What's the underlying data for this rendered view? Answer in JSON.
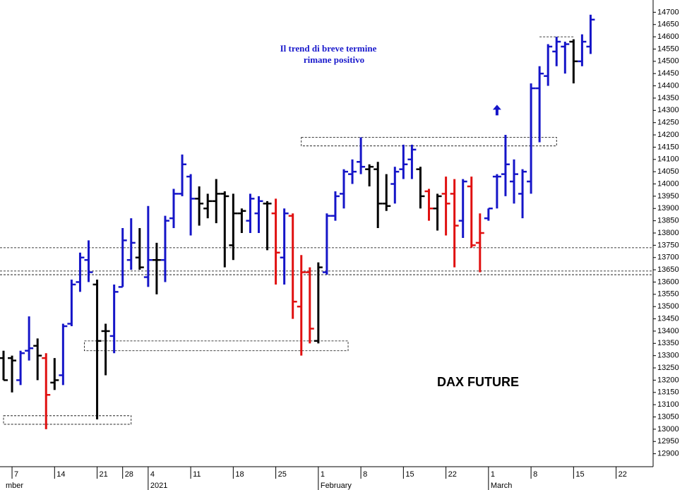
{
  "chart_data": {
    "type": "ohlc",
    "title": "DAX FUTURE",
    "annotations": [
      "Il trend di breve termine",
      "rimane positivo"
    ],
    "categories": [
      null,
      "7",
      null,
      null,
      null,
      null,
      "14",
      null,
      null,
      null,
      null,
      "21",
      null,
      null,
      "28",
      null,
      null,
      "4",
      null,
      null,
      null,
      null,
      "11",
      null,
      null,
      null,
      null,
      "18",
      null,
      null,
      null,
      null,
      "25",
      null,
      null,
      null,
      null,
      "1",
      null,
      null,
      null,
      null,
      "8",
      null,
      null,
      null,
      null,
      "15",
      null,
      null,
      null,
      null,
      "22",
      null,
      null,
      null,
      null,
      "1",
      null,
      null,
      null,
      null,
      "8",
      null,
      null,
      null,
      null,
      "15",
      null,
      null,
      null,
      null,
      "22",
      null,
      null,
      null,
      null
    ],
    "month_row": [
      "mber",
      null,
      null,
      null,
      null,
      null,
      null,
      null,
      null,
      null,
      null,
      null,
      null,
      null,
      null,
      null,
      null,
      "2021",
      null,
      null,
      null,
      null,
      null,
      null,
      null,
      null,
      null,
      null,
      null,
      null,
      null,
      null,
      null,
      null,
      null,
      null,
      null,
      "February",
      null,
      null,
      null,
      null,
      null,
      null,
      null,
      null,
      null,
      null,
      null,
      null,
      null,
      null,
      null,
      null,
      null,
      null,
      null,
      "March",
      null,
      null,
      null,
      null,
      null,
      null,
      null,
      null,
      null,
      null,
      null,
      null,
      null,
      null,
      null,
      null,
      null,
      null,
      null
    ],
    "open": [
      13290,
      13290,
      13200,
      13320,
      13340,
      13290,
      13190,
      13220,
      13430,
      13600,
      13690,
      13590,
      13400,
      13380,
      13580,
      13690,
      13700,
      13620,
      13690,
      13690,
      13860,
      13960,
      14030,
      13940,
      13900,
      13930,
      13960,
      13750,
      13880,
      13850,
      13880,
      13920,
      13880,
      13700,
      13870,
      13500,
      13640,
      13360,
      13640,
      13870,
      13960,
      14040,
      14090,
      14060,
      14060,
      13920,
      14000,
      14060,
      14100,
      14060,
      13970,
      13900,
      13960,
      13960,
      13850,
      13990,
      13760,
      13860,
      14030,
      14040,
      14010,
      13960,
      14010,
      14390,
      14440,
      14540,
      14560,
      14580,
      14500,
      14560,
      null,
      null,
      null,
      null,
      null,
      null,
      null
    ],
    "high": [
      13320,
      13300,
      13320,
      13460,
      13370,
      13310,
      13290,
      13430,
      13610,
      13720,
      13770,
      13610,
      13430,
      13590,
      13820,
      13860,
      13820,
      13910,
      13760,
      13870,
      13980,
      14120,
      14040,
      13990,
      13960,
      14020,
      13970,
      13960,
      13900,
      13960,
      13950,
      13930,
      13940,
      13900,
      13880,
      13710,
      13660,
      13680,
      13880,
      13970,
      14060,
      14100,
      14190,
      14080,
      14090,
      14040,
      14070,
      14160,
      14160,
      14070,
      13980,
      13960,
      14030,
      14020,
      14020,
      14030,
      13880,
      13900,
      14040,
      14200,
      14100,
      14060,
      14410,
      14480,
      14570,
      14600,
      14580,
      14590,
      14610,
      14690,
      null,
      null,
      null,
      null,
      null,
      null,
      null
    ],
    "low": [
      13200,
      13150,
      13180,
      13280,
      13200,
      13000,
      13160,
      13180,
      13420,
      13560,
      13600,
      13040,
      13220,
      13310,
      13580,
      13650,
      13650,
      13580,
      13550,
      13600,
      13820,
      13950,
      13790,
      13830,
      13860,
      13840,
      13660,
      13690,
      13800,
      13800,
      13800,
      13730,
      13590,
      13590,
      13450,
      13300,
      13350,
      13350,
      13630,
      13850,
      13900,
      14000,
      14040,
      13990,
      13820,
      13890,
      13920,
      14020,
      14020,
      13900,
      13850,
      13810,
      13790,
      13660,
      13780,
      13740,
      13640,
      13850,
      13900,
      13950,
      13920,
      13860,
      13960,
      14170,
      14400,
      14480,
      14450,
      14410,
      14480,
      14530,
      null,
      null,
      null,
      null,
      null,
      null,
      null
    ],
    "close": [
      13200,
      13280,
      13310,
      13330,
      13300,
      13140,
      13200,
      13420,
      13590,
      13700,
      13640,
      13360,
      13400,
      13560,
      13770,
      13760,
      13660,
      13690,
      13690,
      13850,
      13960,
      14080,
      13940,
      13920,
      13930,
      13960,
      13950,
      13880,
      13890,
      13940,
      13930,
      13920,
      13720,
      13880,
      13520,
      13640,
      13410,
      13660,
      13870,
      13950,
      14050,
      14050,
      14070,
      14070,
      13920,
      13910,
      14050,
      14080,
      14140,
      13950,
      13900,
      13950,
      13920,
      13830,
      14010,
      13750,
      13800,
      13900,
      14030,
      14080,
      14040,
      14050,
      14390,
      14450,
      14560,
      14580,
      14570,
      14500,
      14580,
      14670,
      null,
      null,
      null,
      null,
      null,
      null,
      null
    ],
    "colors": [
      "#000000",
      "#000000",
      "#1515c8",
      "#1515c8",
      "#000000",
      "#e01010",
      "#000000",
      "#1515c8",
      "#1515c8",
      "#1515c8",
      "#1515c8",
      "#000000",
      "#000000",
      "#1515c8",
      "#1515c8",
      "#1515c8",
      "#000000",
      "#1515c8",
      "#000000",
      "#1515c8",
      "#1515c8",
      "#1515c8",
      "#1515c8",
      "#000000",
      "#000000",
      "#000000",
      "#000000",
      "#000000",
      "#000000",
      "#1515c8",
      "#1515c8",
      "#000000",
      "#e01010",
      "#1515c8",
      "#e01010",
      "#e01010",
      "#e01010",
      "#000000",
      "#1515c8",
      "#1515c8",
      "#1515c8",
      "#1515c8",
      "#1515c8",
      "#000000",
      "#000000",
      "#000000",
      "#1515c8",
      "#1515c8",
      "#1515c8",
      "#000000",
      "#e01010",
      "#000000",
      "#e01010",
      "#e01010",
      "#1515c8",
      "#e01010",
      "#e01010",
      "#1515c8",
      "#1515c8",
      "#1515c8",
      "#1515c8",
      "#1515c8",
      "#1515c8",
      "#1515c8",
      "#1515c8",
      "#1515c8",
      "#1515c8",
      "#000000",
      "#1515c8",
      "#1515c8",
      null,
      null,
      null,
      null,
      null,
      null,
      null
    ],
    "ylim": [
      12850,
      14750
    ],
    "yticks": [
      12900,
      12950,
      13000,
      13050,
      13100,
      13150,
      13200,
      13250,
      13300,
      13350,
      13400,
      13450,
      13500,
      13550,
      13600,
      13650,
      13700,
      13750,
      13800,
      13850,
      13900,
      13950,
      14000,
      14050,
      14100,
      14150,
      14200,
      14250,
      14300,
      14350,
      14400,
      14450,
      14500,
      14550,
      14600,
      14650,
      14700
    ],
    "levels": [
      13740,
      13645,
      13630
    ],
    "zones": [
      {
        "x_from": 0,
        "x_to": 15,
        "low": 13020,
        "high": 13055
      },
      {
        "x_from": 9.5,
        "x_to": 40.5,
        "low": 13320,
        "high": 13360
      },
      {
        "x_from": 35,
        "x_to": 65,
        "low": 14155,
        "high": 14190
      },
      {
        "x_from": 63,
        "x_to": 67,
        "low": 14600,
        "high": 14600
      }
    ],
    "arrow_value": 14300,
    "arrow_index": 58
  }
}
